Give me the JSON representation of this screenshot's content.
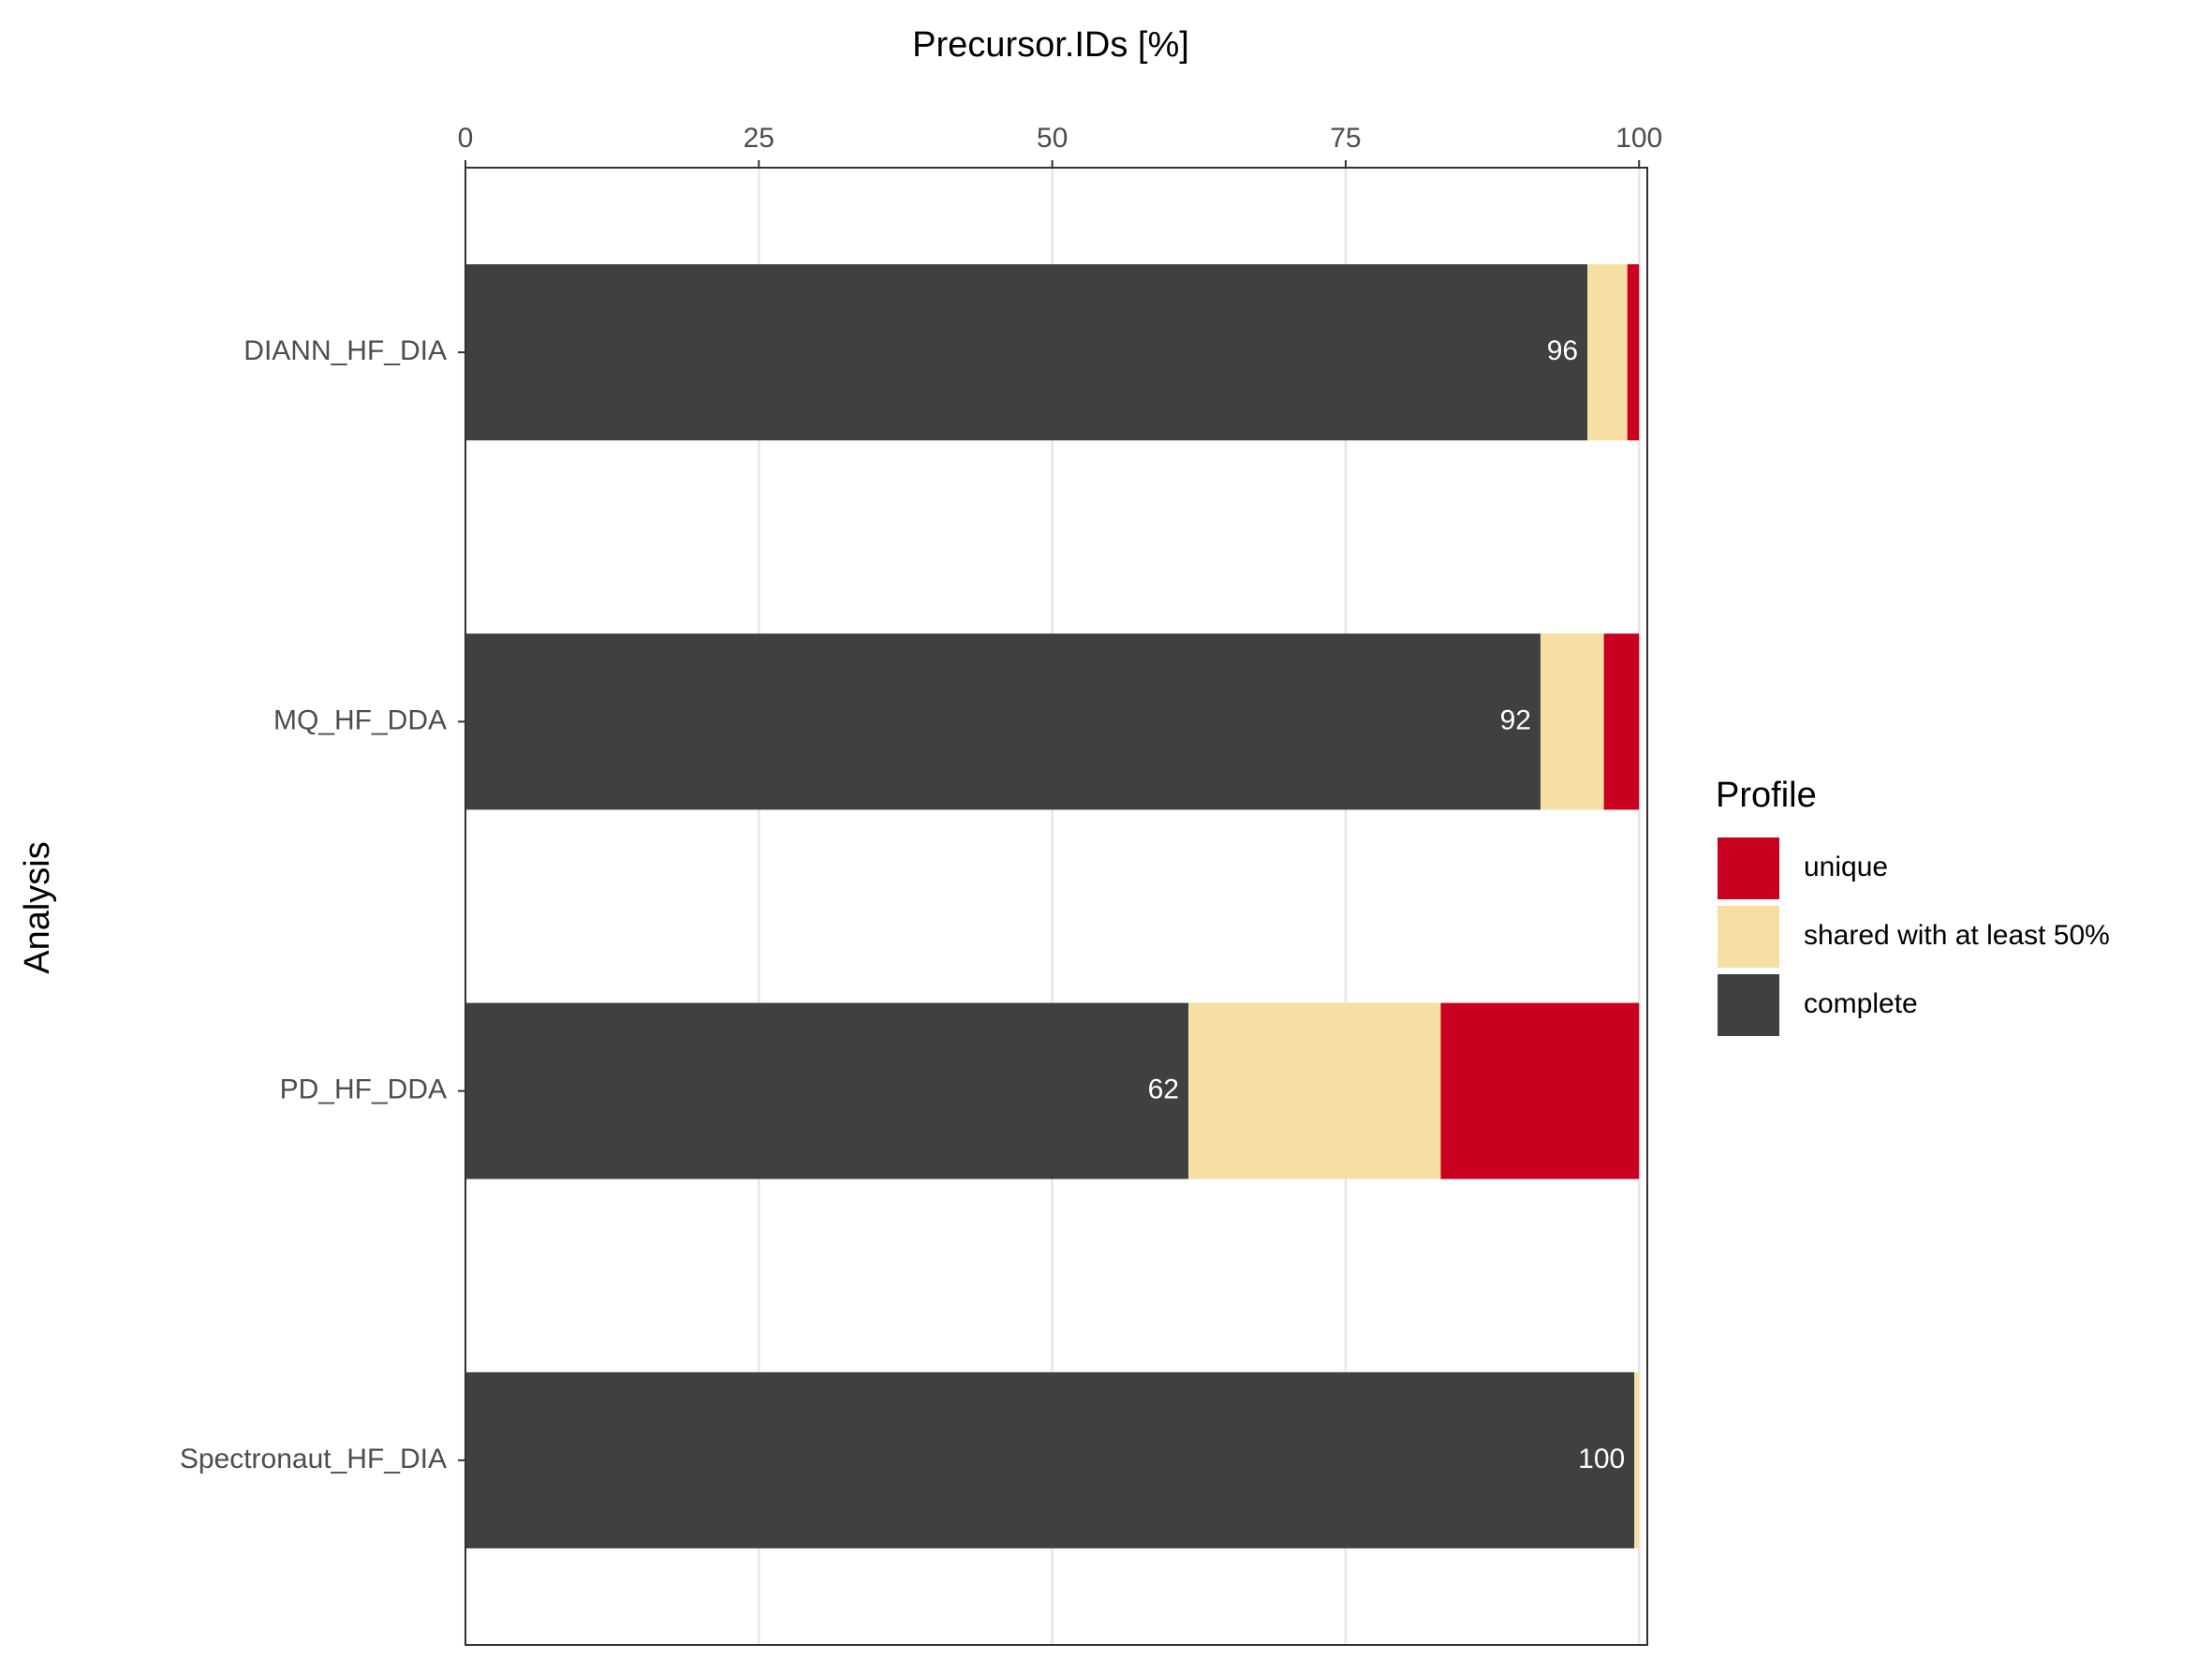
{
  "chart_data": {
    "type": "stacked-bar-horizontal",
    "x_label": "Precursor.IDs [%]",
    "y_label": "Analysis",
    "legend_title": "Profile",
    "categories": [
      "DIANN_HF_DIA",
      "MQ_HF_DDA",
      "PD_HF_DDA",
      "Spectronaut_HF_DIA"
    ],
    "series": [
      {
        "name": "complete",
        "color": "#404040",
        "values": [
          95.6,
          91.6,
          61.6,
          99.6
        ],
        "value_labels": [
          "96",
          "92",
          "62",
          "100"
        ]
      },
      {
        "name": "shared with at least 50%",
        "color": "#f5dfa3",
        "values": [
          3.4,
          5.4,
          21.5,
          0.4
        ]
      },
      {
        "name": "unique",
        "color": "#c90020",
        "values": [
          1.0,
          3.0,
          16.9,
          0
        ]
      }
    ],
    "xlim": [
      0,
      100.7
    ],
    "xticks": [
      0,
      25,
      50,
      75,
      100
    ],
    "grid": true,
    "legend_position": "right"
  }
}
